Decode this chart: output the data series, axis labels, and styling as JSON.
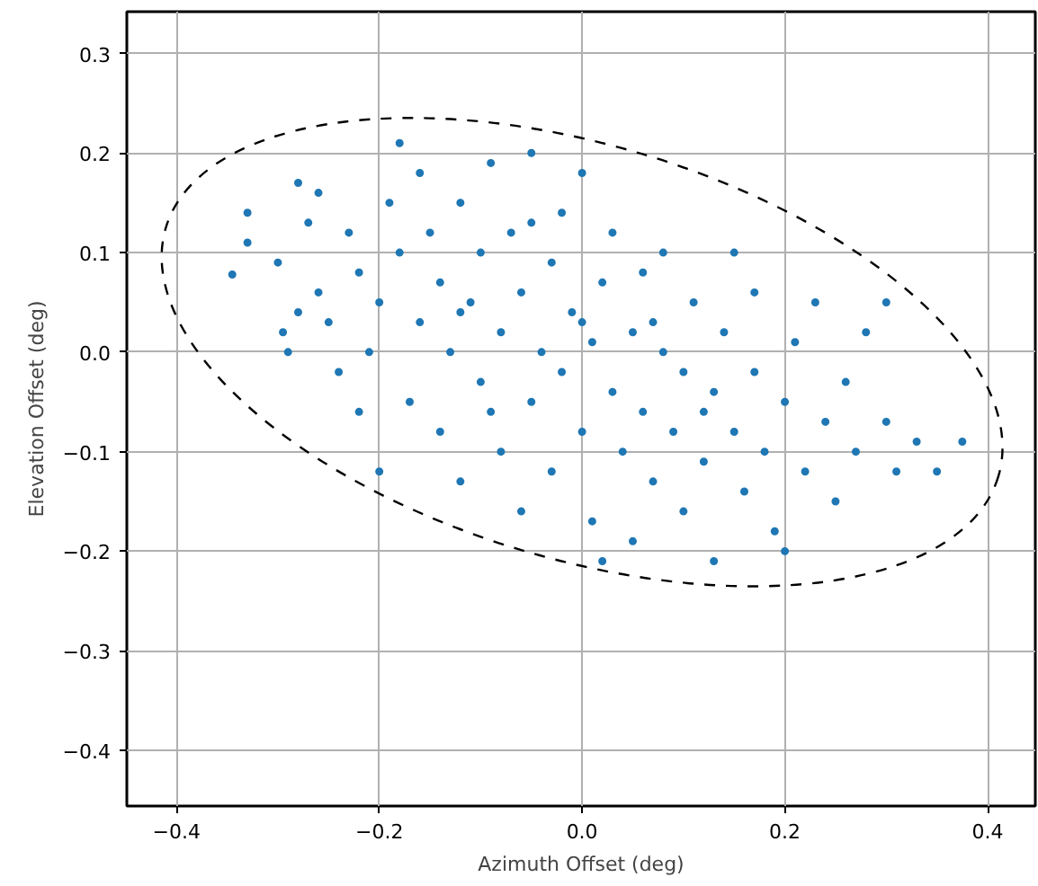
{
  "chart_data": {
    "type": "scatter",
    "xlabel": "Azimuth Offset (deg)",
    "ylabel": "Elevation Offset (deg)",
    "xlim": [
      -0.449,
      0.447
    ],
    "ylim": [
      -0.456,
      0.342
    ],
    "xticks": [
      {
        "value": -0.4,
        "label": "−0.4"
      },
      {
        "value": -0.2,
        "label": "−0.2"
      },
      {
        "value": 0.0,
        "label": "0.0"
      },
      {
        "value": 0.2,
        "label": "0.2"
      },
      {
        "value": 0.4,
        "label": "0.4"
      }
    ],
    "yticks": [
      {
        "value": -0.4,
        "label": "−0.4"
      },
      {
        "value": -0.3,
        "label": "−0.3"
      },
      {
        "value": -0.2,
        "label": "−0.2"
      },
      {
        "value": -0.1,
        "label": "−0.1"
      },
      {
        "value": 0.0,
        "label": "0.0"
      },
      {
        "value": 0.1,
        "label": "0.1"
      },
      {
        "value": 0.2,
        "label": "0.2"
      },
      {
        "value": 0.3,
        "label": "0.3"
      }
    ],
    "grid": true,
    "marker": "circle",
    "series": [
      {
        "color": "#1f77b4",
        "x": [
          -0.345,
          -0.33,
          -0.33,
          -0.3,
          -0.295,
          -0.29,
          -0.28,
          -0.27,
          -0.26,
          -0.26,
          -0.25,
          -0.24,
          -0.23,
          -0.22,
          -0.21,
          -0.2,
          -0.2,
          -0.19,
          -0.18,
          -0.18,
          -0.17,
          -0.16,
          -0.16,
          -0.15,
          -0.14,
          -0.14,
          -0.13,
          -0.12,
          -0.12,
          -0.11,
          -0.1,
          -0.1,
          -0.09,
          -0.08,
          -0.08,
          -0.07,
          -0.06,
          -0.06,
          -0.05,
          -0.05,
          -0.04,
          -0.03,
          -0.03,
          -0.02,
          -0.02,
          -0.01,
          0.0,
          0.0,
          0.01,
          0.01,
          0.02,
          0.03,
          0.03,
          0.04,
          0.05,
          0.05,
          0.06,
          0.06,
          0.07,
          0.08,
          0.08,
          0.09,
          0.1,
          0.1,
          0.11,
          0.12,
          0.13,
          0.13,
          0.14,
          0.15,
          0.16,
          0.17,
          0.17,
          0.18,
          0.19,
          0.2,
          0.2,
          0.21,
          0.22,
          0.23,
          0.24,
          0.25,
          0.26,
          0.27,
          0.28,
          0.3,
          0.3,
          0.31,
          0.33,
          0.35,
          0.375,
          -0.22,
          -0.28,
          0.02,
          0.15,
          -0.05,
          0.0,
          -0.12,
          0.12,
          0.07,
          -0.09
        ],
        "values": [
          0.078,
          0.14,
          0.11,
          0.09,
          0.02,
          0.0,
          0.17,
          0.13,
          0.16,
          0.06,
          0.03,
          -0.02,
          0.12,
          0.08,
          0.0,
          -0.12,
          0.05,
          0.15,
          0.21,
          0.1,
          -0.05,
          0.03,
          0.18,
          0.12,
          -0.08,
          0.07,
          0.0,
          0.15,
          -0.13,
          0.05,
          0.1,
          -0.03,
          0.19,
          -0.1,
          0.02,
          0.12,
          -0.16,
          0.06,
          -0.05,
          0.2,
          0.0,
          0.09,
          -0.12,
          0.14,
          -0.02,
          0.04,
          -0.08,
          0.18,
          0.01,
          -0.17,
          0.07,
          -0.04,
          0.12,
          -0.1,
          0.02,
          -0.19,
          0.08,
          -0.06,
          -0.13,
          0.0,
          0.1,
          -0.08,
          -0.02,
          -0.16,
          0.05,
          -0.11,
          -0.21,
          -0.04,
          0.02,
          -0.08,
          -0.14,
          0.06,
          -0.02,
          -0.1,
          -0.18,
          -0.05,
          -0.2,
          0.01,
          -0.12,
          0.05,
          -0.07,
          -0.15,
          -0.03,
          -0.1,
          0.02,
          0.05,
          -0.07,
          -0.12,
          -0.09,
          -0.12,
          -0.09,
          -0.06,
          0.04,
          -0.21,
          0.1,
          0.13,
          0.03,
          0.04,
          -0.06,
          0.03,
          -0.06
        ]
      }
    ]
  }
}
